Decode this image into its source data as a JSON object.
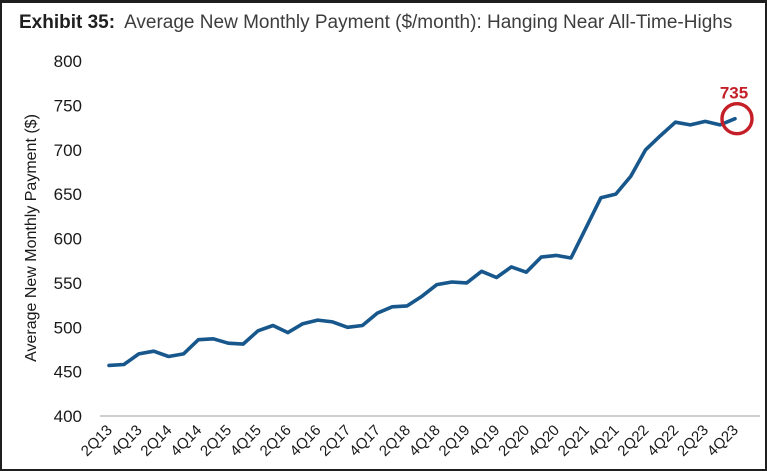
{
  "title": {
    "label": "Exhibit 35:",
    "text": "Average New Monthly Payment ($/month): Hanging Near All-Time-Highs"
  },
  "chart_data": {
    "type": "line",
    "title": "Average New Monthly Payment ($/month): Hanging Near All-Time-Highs",
    "xlabel": "",
    "ylabel": "Average New Monthly Payment ($)",
    "ylim": [
      400,
      800
    ],
    "ytick_step": 50,
    "grid": false,
    "legend": "none",
    "xtick_every": 2,
    "categories": [
      "2Q13",
      "3Q13",
      "4Q13",
      "1Q14",
      "2Q14",
      "3Q14",
      "4Q14",
      "1Q15",
      "2Q15",
      "3Q15",
      "4Q15",
      "1Q16",
      "2Q16",
      "3Q16",
      "4Q16",
      "1Q17",
      "2Q17",
      "3Q17",
      "4Q17",
      "1Q18",
      "2Q18",
      "3Q18",
      "4Q18",
      "1Q19",
      "2Q19",
      "3Q19",
      "4Q19",
      "1Q20",
      "2Q20",
      "3Q20",
      "4Q20",
      "1Q21",
      "2Q21",
      "3Q21",
      "4Q21",
      "1Q22",
      "2Q22",
      "3Q22",
      "4Q22",
      "1Q23",
      "2Q23",
      "3Q23",
      "4Q23"
    ],
    "series": [
      {
        "name": "Average New Monthly Payment ($)",
        "values": [
          457,
          458,
          470,
          473,
          467,
          470,
          486,
          487,
          482,
          481,
          496,
          502,
          494,
          504,
          508,
          506,
          500,
          502,
          516,
          523,
          524,
          535,
          548,
          551,
          550,
          563,
          556,
          568,
          562,
          579,
          581,
          578,
          612,
          646,
          650,
          670,
          700,
          716,
          731,
          728,
          732,
          728,
          735
        ]
      }
    ],
    "annotation": {
      "text": "735",
      "category": "4Q23",
      "value": 735,
      "style": "red-circle-on-last-point"
    }
  },
  "colors": {
    "line": "#17578c",
    "annotation_red": "#c41e27",
    "axis_line": "#bfbfbf",
    "tick_text": "#191919",
    "title_text": "#3d3d3d"
  }
}
